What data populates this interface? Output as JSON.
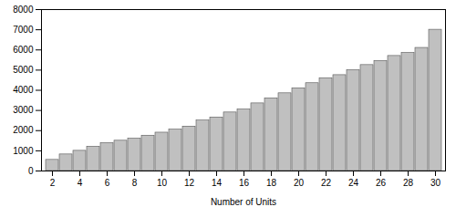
{
  "chart_data": {
    "type": "bar",
    "categories": [
      2,
      3,
      4,
      5,
      6,
      7,
      8,
      9,
      10,
      11,
      12,
      13,
      14,
      15,
      16,
      17,
      18,
      19,
      20,
      21,
      22,
      23,
      24,
      25,
      26,
      27,
      28,
      29,
      30
    ],
    "values": [
      550,
      820,
      1000,
      1200,
      1380,
      1500,
      1600,
      1750,
      1900,
      2050,
      2200,
      2500,
      2650,
      2900,
      3050,
      3350,
      3600,
      3850,
      4100,
      4350,
      4600,
      4750,
      5000,
      5250,
      5450,
      5700,
      5850,
      6100,
      7000
    ],
    "color": "#c0c0c0",
    "xlabel": "Number of Units",
    "xticks": [
      2,
      4,
      6,
      8,
      10,
      12,
      14,
      16,
      18,
      20,
      22,
      24,
      26,
      28,
      30
    ],
    "ylim": [
      0,
      8000
    ],
    "yticks": [
      0,
      1000,
      2000,
      3000,
      4000,
      5000,
      6000,
      7000,
      8000
    ],
    "grid": false
  }
}
